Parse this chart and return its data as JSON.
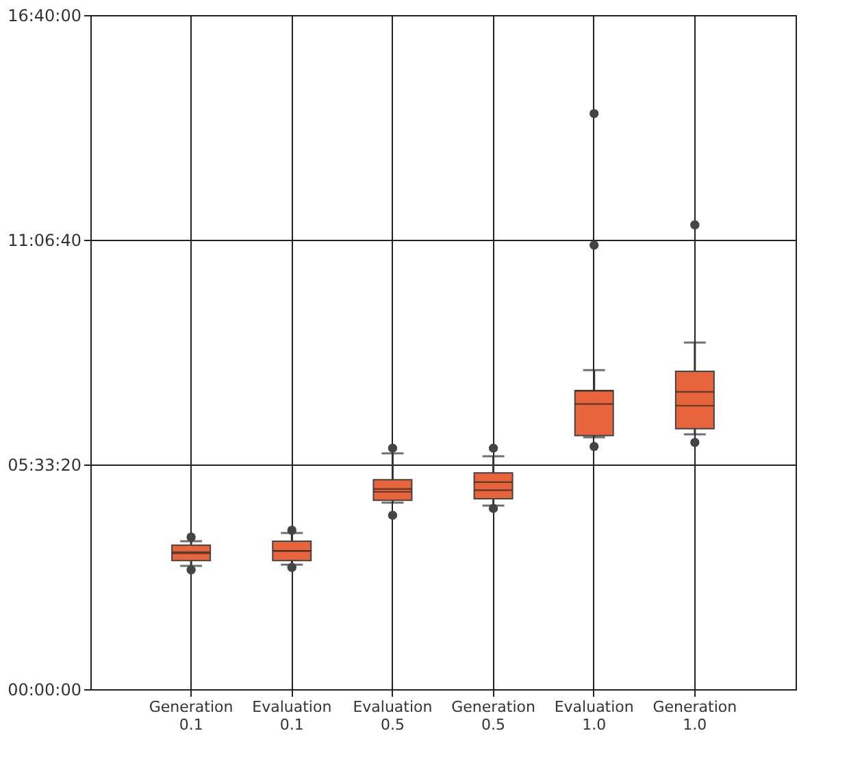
{
  "chart_data": {
    "type": "box",
    "categories": [
      "Generation\n0.1",
      "Evaluation\n0.1",
      "Evaluation\n0.5",
      "Generation\n0.5",
      "Evaluation\n1.0",
      "Generation\n1.0"
    ],
    "boxes": [
      {
        "low": 3.05,
        "q1": 3.18,
        "median": 3.39,
        "q3": 3.56,
        "high": 3.66,
        "mean": 3.36,
        "outliers": [
          3.76,
          2.95
        ]
      },
      {
        "low": 3.08,
        "q1": 3.18,
        "median": 3.42,
        "q3": 3.66,
        "high": 3.86,
        "mean": 3.42,
        "outliers": [
          3.93,
          3.01
        ]
      },
      {
        "low": 4.61,
        "q1": 4.67,
        "median": 4.95,
        "q3": 5.18,
        "high": 5.83,
        "mean": 4.88,
        "outliers": [
          5.96,
          4.3
        ]
      },
      {
        "low": 4.54,
        "q1": 4.71,
        "median": 5.12,
        "q3": 5.35,
        "high": 5.76,
        "mean": 4.92,
        "outliers": [
          5.96,
          4.47
        ]
      },
      {
        "low": 6.23,
        "q1": 6.27,
        "median": 7.38,
        "q3": 7.38,
        "high": 7.89,
        "mean": 7.05,
        "outliers": [
          14.23,
          10.98,
          6.0
        ]
      },
      {
        "low": 6.3,
        "q1": 6.44,
        "median": 7.35,
        "q3": 7.86,
        "high": 8.57,
        "mean": 7.01,
        "outliers": [
          11.48,
          6.1
        ]
      }
    ],
    "color": "#e8643c",
    "ylim": [
      0,
      16.6667
    ],
    "yticks": [
      {
        "value": 0,
        "label": "00:00:00"
      },
      {
        "value": 5.5556,
        "label": "05:33:20"
      },
      {
        "value": 11.1111,
        "label": "11:06:40"
      },
      {
        "value": 16.6667,
        "label": "16:40:00"
      }
    ],
    "grid": true
  }
}
